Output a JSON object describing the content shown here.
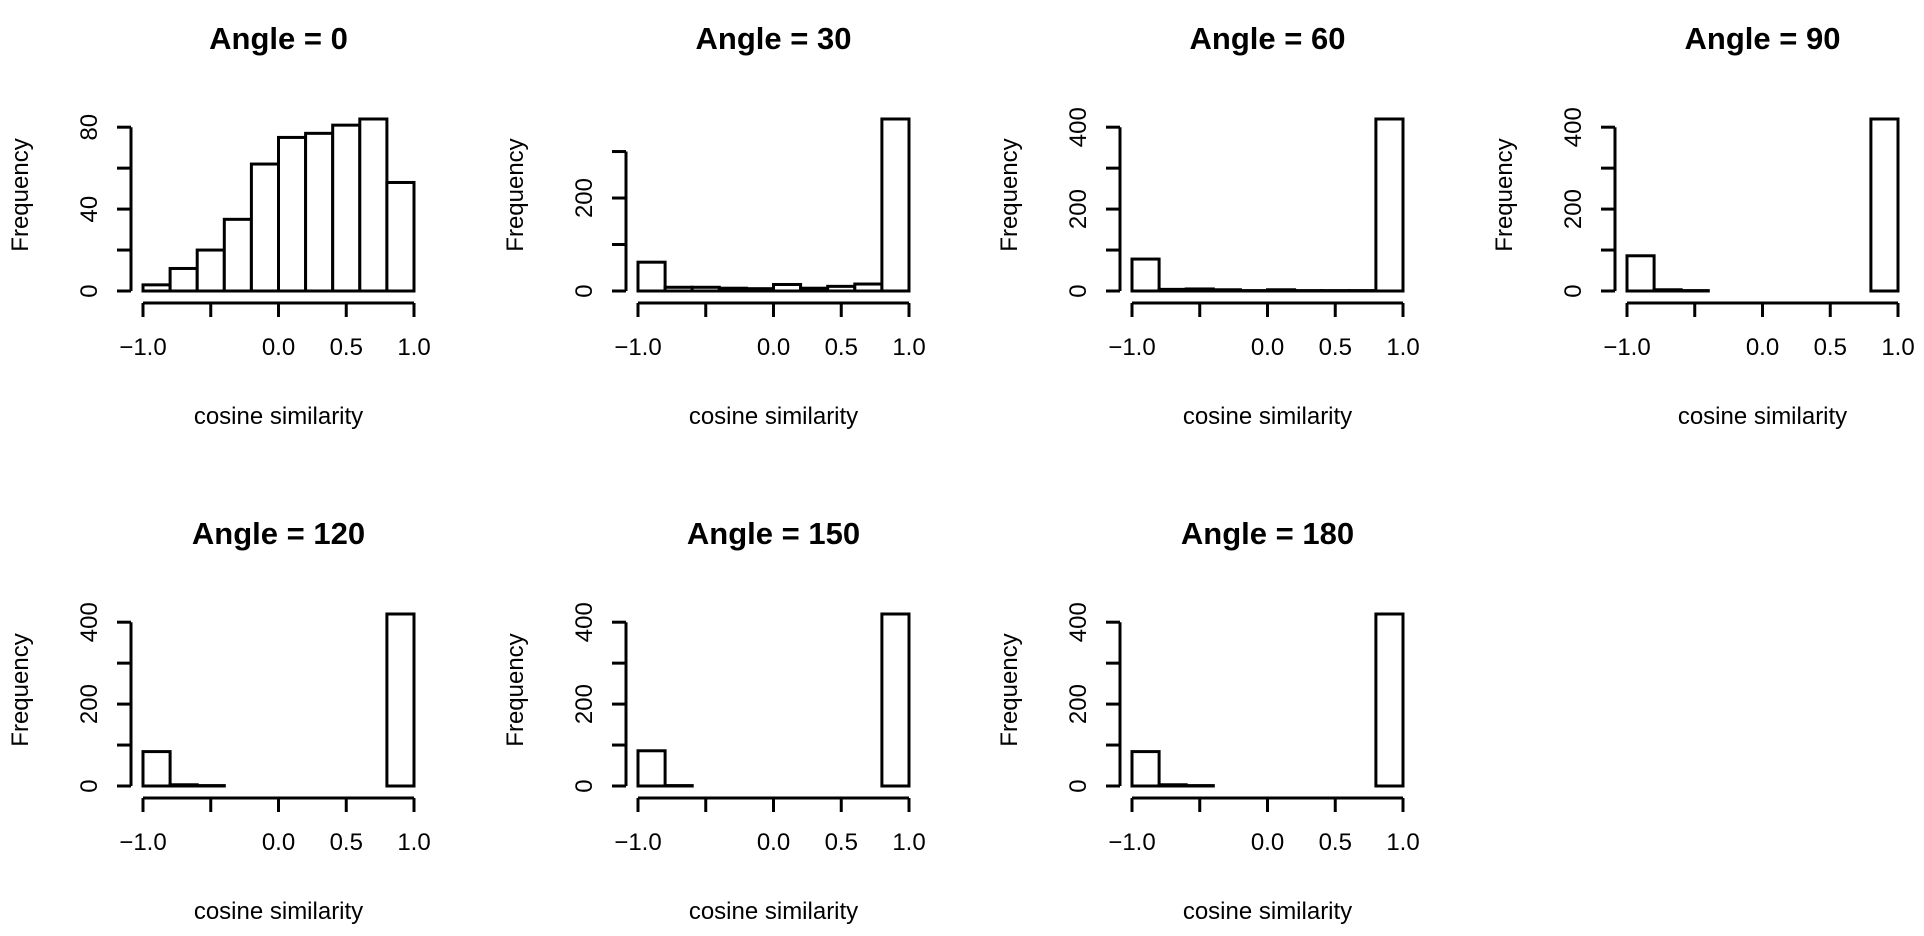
{
  "chart_data": [
    {
      "type": "bar",
      "title": "Angle = 0",
      "xlabel": "cosine similarity",
      "ylabel": "Frequency",
      "bin_edges": [
        -1.0,
        -0.8,
        -0.6,
        -0.4,
        -0.2,
        0.0,
        0.2,
        0.4,
        0.6,
        0.8,
        1.0
      ],
      "values": [
        3,
        11,
        20,
        35,
        62,
        75,
        77,
        81,
        84,
        53
      ],
      "xticks": [
        -1.0,
        -0.5,
        0.0,
        0.5,
        1.0
      ],
      "xtick_labels": [
        "−1.0",
        "",
        "0.0",
        "0.5",
        "1.0"
      ],
      "yticks": [
        0,
        20,
        40,
        60,
        80
      ],
      "ytick_labels": [
        "0",
        "",
        "40",
        "",
        "80"
      ],
      "xlim": [
        -1.0,
        1.0
      ],
      "ylim": [
        0,
        84
      ]
    },
    {
      "type": "bar",
      "title": "Angle = 30",
      "xlabel": "cosine similarity",
      "ylabel": "Frequency",
      "bin_edges": [
        -1.0,
        -0.8,
        -0.6,
        -0.4,
        -0.2,
        0.0,
        0.2,
        0.4,
        0.6,
        0.8,
        1.0
      ],
      "values": [
        62,
        8,
        8,
        6,
        5,
        14,
        6,
        10,
        15,
        370
      ],
      "xticks": [
        -1.0,
        -0.5,
        0.0,
        0.5,
        1.0
      ],
      "xtick_labels": [
        "−1.0",
        "",
        "0.0",
        "0.5",
        "1.0"
      ],
      "yticks": [
        0,
        100,
        200,
        300
      ],
      "ytick_labels": [
        "0",
        "",
        "200",
        ""
      ],
      "xlim": [
        -1.0,
        1.0
      ],
      "ylim": [
        0,
        370
      ]
    },
    {
      "type": "bar",
      "title": "Angle = 60",
      "xlabel": "cosine similarity",
      "ylabel": "Frequency",
      "bin_edges": [
        -1.0,
        -0.8,
        -0.6,
        -0.4,
        -0.2,
        0.0,
        0.2,
        0.4,
        0.6,
        0.8,
        1.0
      ],
      "values": [
        78,
        4,
        5,
        3,
        1,
        3,
        1,
        1,
        1,
        420
      ],
      "xticks": [
        -1.0,
        -0.5,
        0.0,
        0.5,
        1.0
      ],
      "xtick_labels": [
        "−1.0",
        "",
        "0.0",
        "0.5",
        "1.0"
      ],
      "yticks": [
        0,
        100,
        200,
        300,
        400
      ],
      "ytick_labels": [
        "0",
        "",
        "200",
        "",
        "400"
      ],
      "xlim": [
        -1.0,
        1.0
      ],
      "ylim": [
        0,
        420
      ]
    },
    {
      "type": "bar",
      "title": "Angle = 90",
      "xlabel": "cosine similarity",
      "ylabel": "Frequency",
      "bin_edges": [
        -1.0,
        -0.8,
        -0.6,
        -0.4,
        -0.2,
        0.0,
        0.2,
        0.4,
        0.6,
        0.8,
        1.0
      ],
      "values": [
        86,
        3,
        1,
        0,
        0,
        0,
        0,
        0,
        0,
        420
      ],
      "xticks": [
        -1.0,
        -0.5,
        0.0,
        0.5,
        1.0
      ],
      "xtick_labels": [
        "−1.0",
        "",
        "0.0",
        "0.5",
        "1.0"
      ],
      "yticks": [
        0,
        100,
        200,
        300,
        400
      ],
      "ytick_labels": [
        "0",
        "",
        "200",
        "",
        "400"
      ],
      "xlim": [
        -1.0,
        1.0
      ],
      "ylim": [
        0,
        420
      ]
    },
    {
      "type": "bar",
      "title": "Angle = 120",
      "xlabel": "cosine similarity",
      "ylabel": "Frequency",
      "bin_edges": [
        -1.0,
        -0.8,
        -0.6,
        -0.4,
        -0.2,
        0.0,
        0.2,
        0.4,
        0.6,
        0.8,
        1.0
      ],
      "values": [
        84,
        3,
        1,
        0,
        0,
        0,
        0,
        0,
        0,
        420
      ],
      "xticks": [
        -1.0,
        -0.5,
        0.0,
        0.5,
        1.0
      ],
      "xtick_labels": [
        "−1.0",
        "",
        "0.0",
        "0.5",
        "1.0"
      ],
      "yticks": [
        0,
        100,
        200,
        300,
        400
      ],
      "ytick_labels": [
        "0",
        "",
        "200",
        "",
        "400"
      ],
      "xlim": [
        -1.0,
        1.0
      ],
      "ylim": [
        0,
        420
      ]
    },
    {
      "type": "bar",
      "title": "Angle = 150",
      "xlabel": "cosine similarity",
      "ylabel": "Frequency",
      "bin_edges": [
        -1.0,
        -0.8,
        -0.6,
        -0.4,
        -0.2,
        0.0,
        0.2,
        0.4,
        0.6,
        0.8,
        1.0
      ],
      "values": [
        86,
        1,
        0,
        0,
        0,
        0,
        0,
        0,
        0,
        420
      ],
      "xticks": [
        -1.0,
        -0.5,
        0.0,
        0.5,
        1.0
      ],
      "xtick_labels": [
        "−1.0",
        "",
        "0.0",
        "0.5",
        "1.0"
      ],
      "yticks": [
        0,
        100,
        200,
        300,
        400
      ],
      "ytick_labels": [
        "0",
        "",
        "200",
        "",
        "400"
      ],
      "xlim": [
        -1.0,
        1.0
      ],
      "ylim": [
        0,
        420
      ]
    },
    {
      "type": "bar",
      "title": "Angle = 180",
      "xlabel": "cosine similarity",
      "ylabel": "Frequency",
      "bin_edges": [
        -1.0,
        -0.8,
        -0.6,
        -0.4,
        -0.2,
        0.0,
        0.2,
        0.4,
        0.6,
        0.8,
        1.0
      ],
      "values": [
        84,
        3,
        1,
        0,
        0,
        0,
        0,
        0,
        0,
        420
      ],
      "xticks": [
        -1.0,
        -0.5,
        0.0,
        0.5,
        1.0
      ],
      "xtick_labels": [
        "−1.0",
        "",
        "0.0",
        "0.5",
        "1.0"
      ],
      "yticks": [
        0,
        100,
        200,
        300,
        400
      ],
      "ytick_labels": [
        "0",
        "",
        "200",
        "",
        "400"
      ],
      "xlim": [
        -1.0,
        1.0
      ],
      "ylim": [
        0,
        420
      ]
    }
  ]
}
